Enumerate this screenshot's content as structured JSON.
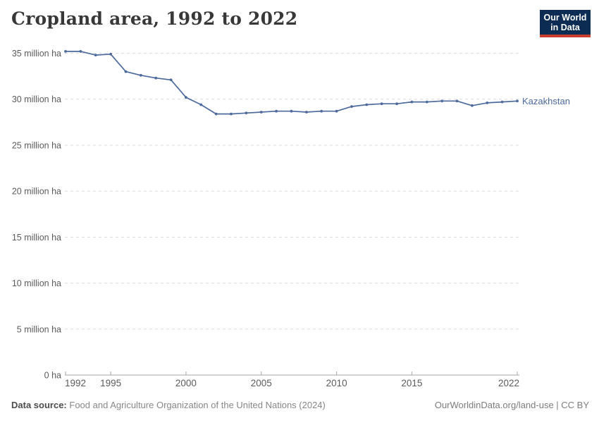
{
  "header": {
    "title": "Cropland area, 1992 to 2022",
    "logo": {
      "line1": "Our World",
      "line2": "in Data",
      "bg_color": "#0d2c54",
      "accent_color": "#c93c30"
    }
  },
  "chart_data": {
    "type": "line",
    "title": "Cropland area, 1992 to 2022",
    "xlabel": "",
    "ylabel": "",
    "unit": "million ha",
    "xlim": [
      1992,
      2022
    ],
    "ylim": [
      0,
      35
    ],
    "grid": "horizontal-dashed",
    "legend_position": "end-of-line-label",
    "x_ticks": [
      1992,
      1995,
      2000,
      2005,
      2010,
      2015,
      2022
    ],
    "y_ticks": {
      "values": [
        0,
        5,
        10,
        15,
        20,
        25,
        30,
        35
      ],
      "labels": [
        "0 ha",
        "5 million ha",
        "10 million ha",
        "15 million ha",
        "20 million ha",
        "25 million ha",
        "30 million ha",
        "35 million ha"
      ]
    },
    "series": [
      {
        "name": "Kazakhstan",
        "color": "#4C6A9C",
        "x": [
          1992,
          1993,
          1994,
          1995,
          1996,
          1997,
          1998,
          1999,
          2000,
          2001,
          2002,
          2003,
          2004,
          2005,
          2006,
          2007,
          2008,
          2009,
          2010,
          2011,
          2012,
          2013,
          2014,
          2015,
          2016,
          2017,
          2018,
          2019,
          2020,
          2021,
          2022
        ],
        "values": [
          35.2,
          35.2,
          34.8,
          34.9,
          33.0,
          32.6,
          32.3,
          32.1,
          30.2,
          29.4,
          28.4,
          28.4,
          28.5,
          28.6,
          28.7,
          28.7,
          28.6,
          28.7,
          28.7,
          29.2,
          29.4,
          29.5,
          29.5,
          29.7,
          29.7,
          29.8,
          29.8,
          29.3,
          29.6,
          29.7,
          29.8
        ]
      }
    ]
  },
  "footer": {
    "source_label": "Data source:",
    "source_text": "Food and Agriculture Organization of the United Nations (2024)",
    "credit": "OurWorldinData.org/land-use | CC BY"
  }
}
